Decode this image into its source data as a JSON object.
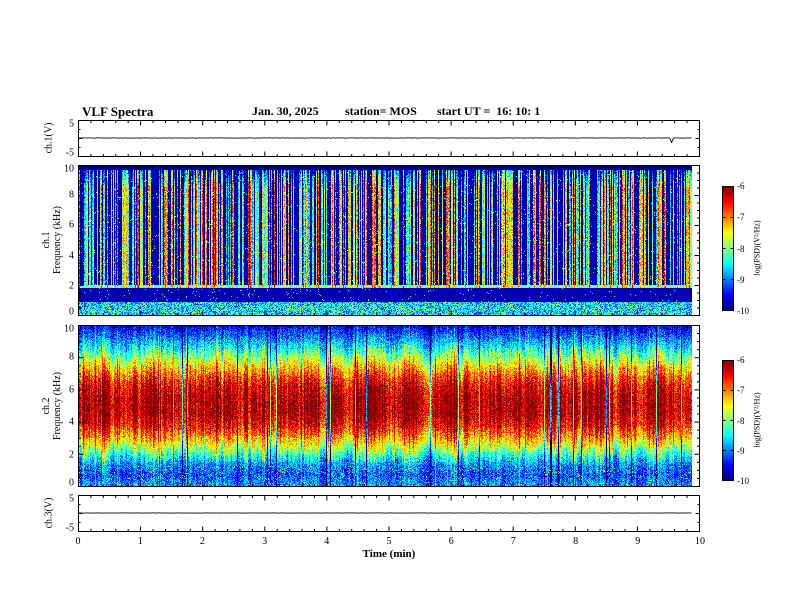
{
  "header": {
    "title": "VLF Spectra",
    "date": "Jan. 30, 2025",
    "station": "station= MOS",
    "start_ut": "start UT =  16: 10: 1"
  },
  "xaxis": {
    "label": "Time (min)",
    "min": 0,
    "max": 10,
    "ticks": [
      0,
      1,
      2,
      3,
      4,
      5,
      6,
      7,
      8,
      9,
      10
    ]
  },
  "panels": {
    "ch1v": {
      "ylabel": "ch.1(V)",
      "ymin": -5,
      "ymax": 5,
      "yticks": [
        5,
        -5
      ]
    },
    "ch1spec": {
      "ylabel_line1": "ch.1",
      "ylabel_line2": "Frequency (kHz)",
      "ymin": 0,
      "ymax": 10,
      "yticks": [
        10,
        8,
        6,
        4,
        2,
        0
      ]
    },
    "ch2spec": {
      "ylabel_line1": "ch.2",
      "ylabel_line2": "Frequency (kHz)",
      "ymin": 0,
      "ymax": 10,
      "yticks": [
        10,
        8,
        6,
        4,
        2,
        0
      ]
    },
    "ch3v": {
      "ylabel": "ch.3(V)",
      "ymin": -5,
      "ymax": 5,
      "yticks": [
        5,
        -5
      ]
    }
  },
  "colorbar": {
    "label": "log(PSD)(V²/Hz)",
    "ticks": [
      -6,
      -7,
      -8,
      -9,
      -10
    ],
    "vmin": -10,
    "vmax": -6,
    "colormap": "jet",
    "top_color": "#b40000",
    "bottom_color": "#000080"
  },
  "render_seed": 20250130,
  "chart_data": [
    {
      "panel": "ch1_voltage",
      "type": "line",
      "x_range_min": [
        0,
        10
      ],
      "y_range_v": [
        -5,
        5
      ],
      "data_end_min": 9.88,
      "noise_v": 0.07,
      "spikes": [
        {
          "t_min": 9.55,
          "amp_v": -1.3
        }
      ],
      "description": "near-flat trace at 0 V with one small negative blip near the right end"
    },
    {
      "panel": "ch1_spectrogram",
      "type": "heatmap",
      "x_range_min": [
        0,
        10
      ],
      "y_range_khz": [
        0,
        10
      ],
      "z_range_log_psd": [
        -10,
        -6
      ],
      "data_end_min": 9.88,
      "background_level": -9.8,
      "streak_density": 0.52,
      "streak_level_min": -8.7,
      "streak_level_max": -6.6,
      "dark_column_density": 0.06,
      "low_band_khz": [
        0,
        0.9
      ],
      "low_band_level": -8.6,
      "gap_band_khz": [
        0.9,
        1.85
      ],
      "gap_band_level": -9.95,
      "line_khz": [
        1.85,
        2.05
      ],
      "line_level": -8.0,
      "top_cut_khz": 9.7,
      "description": "dense vertical impulsive sferic streaks (green/cyan/yellow) over dark blue background; black band near 1-1.8 kHz; continuous green line near 2 kHz"
    },
    {
      "panel": "ch2_spectrogram",
      "type": "heatmap",
      "x_range_min": [
        0,
        10
      ],
      "y_range_khz": [
        0,
        10
      ],
      "z_range_log_psd": [
        -10,
        -6
      ],
      "data_end_min": 9.88,
      "profile_points_khz_logpsd": [
        [
          0,
          -8.9
        ],
        [
          0.7,
          -9.25
        ],
        [
          1.3,
          -9.0
        ],
        [
          2,
          -8.3
        ],
        [
          2.6,
          -7.6
        ],
        [
          3.2,
          -7.0
        ],
        [
          3.8,
          -6.5
        ],
        [
          4.5,
          -6.2
        ],
        [
          5.5,
          -6.2
        ],
        [
          6.2,
          -6.4
        ],
        [
          6.8,
          -6.8
        ],
        [
          7.4,
          -7.3
        ],
        [
          8,
          -7.9
        ],
        [
          8.6,
          -8.5
        ],
        [
          9.2,
          -9.0
        ],
        [
          10,
          -9.6
        ]
      ],
      "stripe_amp": 0.8,
      "bright_column_density": 0.1,
      "dark_streak_density": 0.05,
      "description": "strong broadband hiss: red core ~3.5-6.5 kHz grading through yellow/green to blue at band edges, vertical striping texture and occasional dark streaks"
    },
    {
      "panel": "ch3_voltage",
      "type": "line",
      "x_range_min": [
        0,
        10
      ],
      "y_range_v": [
        -5,
        5
      ],
      "data_end_min": 9.88,
      "noise_v": 0.04,
      "spikes": [],
      "description": "flat trace at 0 V"
    }
  ]
}
